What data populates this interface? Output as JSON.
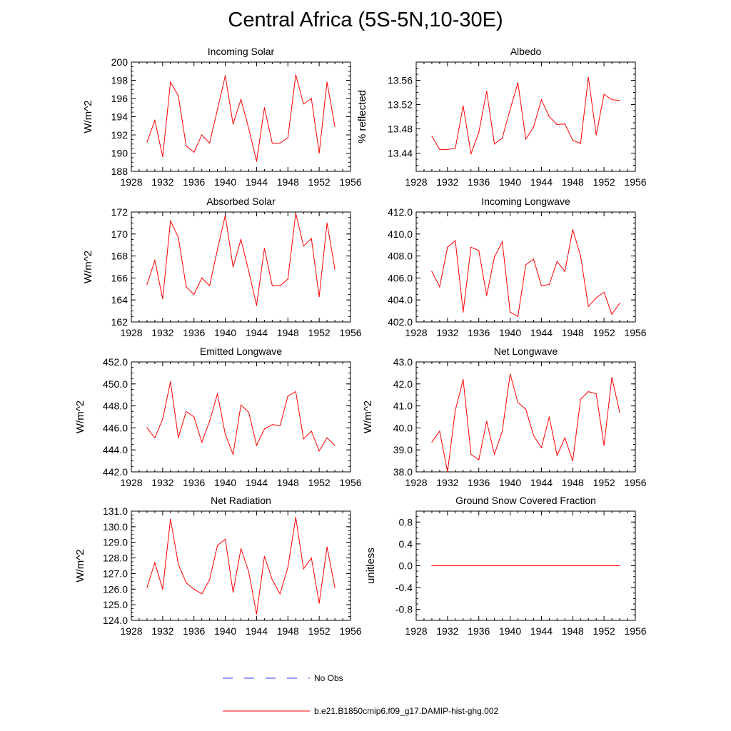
{
  "title": "Central Africa (5S-5N,10-30E)",
  "colors": {
    "model": "#ff0000",
    "obs": "#3333ff",
    "axis": "#000000"
  },
  "legend": {
    "placement": "bottom-center",
    "entries": [
      {
        "label": "No Obs",
        "style": "dashed",
        "color": "#3333ff"
      },
      {
        "label": "b.e21.B1850cmip6.f09_g17.DAMIP-hist-ghg.002",
        "style": "solid",
        "color": "#ff0000"
      }
    ]
  },
  "chart_data": [
    {
      "type": "line",
      "title": "Incoming Solar",
      "ylabel": "W/m^2",
      "xlim": [
        1928,
        1956
      ],
      "xticks": [
        1928,
        1932,
        1936,
        1940,
        1944,
        1948,
        1952,
        1956
      ],
      "ylim": [
        188,
        200
      ],
      "yticks": [
        188,
        190,
        192,
        194,
        196,
        198,
        200
      ],
      "ytick_labels": [
        "188",
        "190",
        "192",
        "194",
        "196",
        "198",
        "200"
      ],
      "x": [
        1930,
        1931,
        1932,
        1933,
        1934,
        1935,
        1936,
        1937,
        1938,
        1939,
        1940,
        1941,
        1942,
        1943,
        1944,
        1945,
        1946,
        1947,
        1948,
        1949,
        1950,
        1951,
        1952,
        1953,
        1954
      ],
      "series": [
        {
          "values": [
            191.2,
            193.6,
            189.6,
            197.8,
            196.3,
            190.8,
            190.1,
            192.0,
            191.1,
            194.8,
            198.5,
            193.2,
            195.9,
            192.7,
            189.1,
            195.0,
            191.1,
            191.1,
            191.7,
            198.6,
            195.4,
            196.0,
            190.0,
            197.8,
            192.9
          ]
        }
      ]
    },
    {
      "type": "line",
      "title": "Albedo",
      "ylabel": "% reflected",
      "xlim": [
        1928,
        1956
      ],
      "xticks": [
        1928,
        1932,
        1936,
        1940,
        1944,
        1948,
        1952,
        1956
      ],
      "ylim": [
        13.41,
        13.59
      ],
      "yticks": [
        13.44,
        13.48,
        13.52,
        13.56
      ],
      "ytick_labels": [
        "13.44",
        "13.48",
        "13.52",
        "13.56"
      ],
      "x": [
        1930,
        1931,
        1932,
        1933,
        1934,
        1935,
        1936,
        1937,
        1938,
        1939,
        1940,
        1941,
        1942,
        1943,
        1944,
        1945,
        1946,
        1947,
        1948,
        1949,
        1950,
        1951,
        1952,
        1953,
        1954
      ],
      "series": [
        {
          "values": [
            13.468,
            13.446,
            13.446,
            13.448,
            13.518,
            13.439,
            13.474,
            13.542,
            13.455,
            13.465,
            13.512,
            13.556,
            13.463,
            13.483,
            13.528,
            13.5,
            13.487,
            13.488,
            13.461,
            13.456,
            13.565,
            13.47,
            13.537,
            13.528,
            13.527
          ]
        }
      ]
    },
    {
      "type": "line",
      "title": "Absorbed Solar",
      "ylabel": "W/m^2",
      "xlim": [
        1928,
        1956
      ],
      "xticks": [
        1928,
        1932,
        1936,
        1940,
        1944,
        1948,
        1952,
        1956
      ],
      "ylim": [
        162,
        172
      ],
      "yticks": [
        162,
        164,
        166,
        168,
        170,
        172
      ],
      "ytick_labels": [
        "162",
        "164",
        "166",
        "168",
        "170",
        "172"
      ],
      "x": [
        1930,
        1931,
        1932,
        1933,
        1934,
        1935,
        1936,
        1937,
        1938,
        1939,
        1940,
        1941,
        1942,
        1943,
        1944,
        1945,
        1946,
        1947,
        1948,
        1949,
        1950,
        1951,
        1952,
        1953,
        1954
      ],
      "series": [
        {
          "values": [
            165.4,
            167.6,
            164.1,
            171.2,
            169.7,
            165.2,
            164.5,
            166.0,
            165.3,
            168.6,
            171.7,
            167.0,
            169.5,
            166.6,
            163.5,
            168.7,
            165.3,
            165.3,
            165.9,
            171.9,
            168.9,
            169.6,
            164.3,
            171.0,
            166.8
          ]
        }
      ]
    },
    {
      "type": "line",
      "title": "Incoming Longwave",
      "ylabel": "",
      "xlim": [
        1928,
        1956
      ],
      "xticks": [
        1928,
        1932,
        1936,
        1940,
        1944,
        1948,
        1952,
        1956
      ],
      "ylim": [
        402,
        412
      ],
      "yticks": [
        402,
        404,
        406,
        408,
        410,
        412
      ],
      "ytick_labels": [
        "402.0",
        "404.0",
        "406.0",
        "408.0",
        "410.0",
        "412.0"
      ],
      "x": [
        1930,
        1931,
        1932,
        1933,
        1934,
        1935,
        1936,
        1937,
        1938,
        1939,
        1940,
        1941,
        1942,
        1943,
        1944,
        1945,
        1946,
        1947,
        1948,
        1949,
        1950,
        1951,
        1952,
        1953,
        1954
      ],
      "series": [
        {
          "values": [
            406.6,
            405.2,
            408.8,
            409.4,
            402.9,
            408.8,
            408.5,
            404.4,
            407.9,
            409.3,
            402.9,
            402.5,
            407.2,
            407.7,
            405.3,
            405.4,
            407.5,
            406.6,
            410.4,
            408.0,
            403.4,
            404.2,
            404.7,
            402.7,
            403.7
          ]
        }
      ]
    },
    {
      "type": "line",
      "title": "Emitted Longwave",
      "ylabel": "W/m^2",
      "xlim": [
        1928,
        1956
      ],
      "xticks": [
        1928,
        1932,
        1936,
        1940,
        1944,
        1948,
        1952,
        1956
      ],
      "ylim": [
        442,
        452
      ],
      "yticks": [
        442,
        444,
        446,
        448,
        450,
        452
      ],
      "ytick_labels": [
        "442.0",
        "444.0",
        "446.0",
        "448.0",
        "450.0",
        "452.0"
      ],
      "x": [
        1930,
        1931,
        1932,
        1933,
        1934,
        1935,
        1936,
        1937,
        1938,
        1939,
        1940,
        1941,
        1942,
        1943,
        1944,
        1945,
        1946,
        1947,
        1948,
        1949,
        1950,
        1951,
        1952,
        1953,
        1954
      ],
      "series": [
        {
          "values": [
            446.0,
            445.1,
            446.8,
            450.2,
            445.1,
            447.5,
            447.0,
            444.7,
            446.6,
            449.1,
            445.4,
            443.6,
            448.1,
            447.4,
            444.4,
            445.9,
            446.3,
            446.2,
            448.9,
            449.3,
            445.0,
            445.7,
            443.9,
            445.1,
            444.4
          ]
        }
      ]
    },
    {
      "type": "line",
      "title": "Net Longwave",
      "ylabel": "W/m^2",
      "xlim": [
        1928,
        1956
      ],
      "xticks": [
        1928,
        1932,
        1936,
        1940,
        1944,
        1948,
        1952,
        1956
      ],
      "ylim": [
        38,
        43
      ],
      "yticks": [
        38,
        39,
        40,
        41,
        42,
        43
      ],
      "ytick_labels": [
        "38.0",
        "39.0",
        "40.0",
        "41.0",
        "42.0",
        "43.0"
      ],
      "x": [
        1930,
        1931,
        1932,
        1933,
        1934,
        1935,
        1936,
        1937,
        1938,
        1939,
        1940,
        1941,
        1942,
        1943,
        1944,
        1945,
        1946,
        1947,
        1948,
        1949,
        1950,
        1951,
        1952,
        1953,
        1954
      ],
      "series": [
        {
          "values": [
            39.35,
            39.85,
            38.0,
            40.8,
            42.2,
            38.8,
            38.55,
            40.3,
            38.8,
            39.85,
            42.45,
            41.15,
            40.85,
            39.65,
            39.1,
            40.5,
            38.75,
            39.55,
            38.5,
            41.3,
            41.65,
            41.55,
            39.2,
            42.3,
            40.7
          ]
        }
      ]
    },
    {
      "type": "line",
      "title": "Net Radiation",
      "ylabel": "W/m^2",
      "xlim": [
        1928,
        1956
      ],
      "xticks": [
        1928,
        1932,
        1936,
        1940,
        1944,
        1948,
        1952,
        1956
      ],
      "ylim": [
        124,
        131
      ],
      "yticks": [
        124,
        125,
        126,
        127,
        128,
        129,
        130,
        131
      ],
      "ytick_labels": [
        "124.0",
        "125.0",
        "126.0",
        "127.0",
        "128.0",
        "129.0",
        "130.0",
        "131.0"
      ],
      "x": [
        1930,
        1931,
        1932,
        1933,
        1934,
        1935,
        1936,
        1937,
        1938,
        1939,
        1940,
        1941,
        1942,
        1943,
        1944,
        1945,
        1946,
        1947,
        1948,
        1949,
        1950,
        1951,
        1952,
        1953,
        1954
      ],
      "series": [
        {
          "values": [
            126.1,
            127.7,
            126.0,
            130.5,
            127.6,
            126.4,
            126.0,
            125.7,
            126.6,
            128.8,
            129.2,
            125.8,
            128.6,
            127.1,
            124.4,
            128.1,
            126.6,
            125.7,
            127.4,
            130.6,
            127.3,
            128.0,
            125.1,
            128.7,
            126.1
          ]
        }
      ]
    },
    {
      "type": "line",
      "title": "Ground Snow Covered Fraction",
      "ylabel": "unitless",
      "xlim": [
        1928,
        1956
      ],
      "xticks": [
        1928,
        1932,
        1936,
        1940,
        1944,
        1948,
        1952,
        1956
      ],
      "ylim": [
        -1.0,
        1.0
      ],
      "yticks": [
        -0.8,
        -0.4,
        0.0,
        0.4,
        0.8
      ],
      "ytick_labels": [
        "-0.8",
        "-0.4",
        "0.0",
        "0.4",
        "0.8"
      ],
      "x": [
        1930,
        1954
      ],
      "series": [
        {
          "values": [
            0.0,
            0.0
          ]
        }
      ]
    }
  ]
}
